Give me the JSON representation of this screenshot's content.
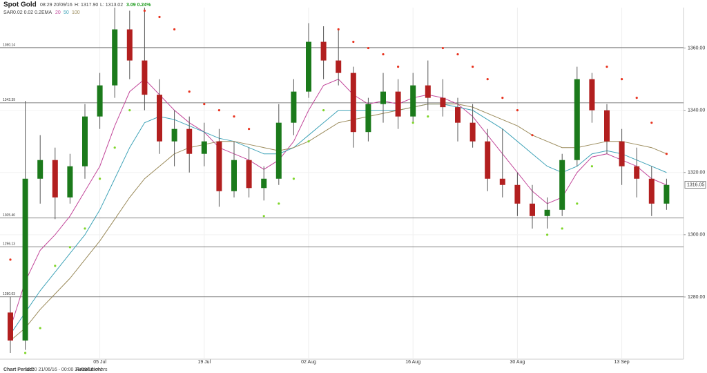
{
  "chart_data": {
    "type": "candlestick",
    "title": "Spot Gold",
    "timestamp": "08:29 20/09/16",
    "high_text": "H: 1317.90",
    "low_text": "L: 1313.02",
    "change_text": "3.09 0.24%",
    "sar_label": "SAR",
    "sar_params": "0.02 0.02 0.2",
    "ema_label": "EMA",
    "period_label": "Chart Period:",
    "period": "12:00 21/06/16 - 00:00 21/09/16",
    "resolution_label": "Resolution:",
    "resolution": "4 hrs",
    "categories": [
      null,
      null,
      null,
      null,
      null,
      null,
      "05 Jul",
      null,
      null,
      null,
      null,
      null,
      null,
      "19 Jul",
      null,
      null,
      null,
      null,
      null,
      null,
      "02 Aug",
      null,
      null,
      null,
      null,
      null,
      null,
      "16 Aug",
      null,
      null,
      null,
      null,
      null,
      null,
      "30 Aug",
      null,
      null,
      null,
      null,
      null,
      null,
      "13 Sep",
      null,
      null,
      null
    ],
    "open": [
      1275,
      1266,
      1318,
      1324,
      1312,
      1322,
      1338,
      1348,
      1366,
      1356,
      1345,
      1330,
      1334,
      1326,
      1330,
      1314,
      1324,
      1315,
      1318,
      1336,
      1346,
      1362,
      1356,
      1352,
      1333,
      1342,
      1346,
      1338,
      1348,
      1344,
      1341,
      1336,
      1330,
      1318,
      1316,
      1310,
      1306,
      1308,
      1324,
      1350,
      1340,
      1330,
      1322,
      1318,
      1310
    ],
    "high": [
      1280,
      1343,
      1332,
      1328,
      1326,
      1342,
      1352,
      1373,
      1372,
      1373,
      1350,
      1340,
      1338,
      1336,
      1334,
      1330,
      1328,
      1322,
      1342,
      1350,
      1368,
      1367,
      1366,
      1354,
      1344,
      1352,
      1350,
      1352,
      1356,
      1350,
      1344,
      1342,
      1334,
      1334,
      1320,
      1316,
      1312,
      1326,
      1354,
      1352,
      1342,
      1334,
      1328,
      1322,
      1318
    ],
    "low": [
      1262,
      1263,
      1310,
      1305,
      1310,
      1318,
      1334,
      1344,
      1350,
      1340,
      1326,
      1322,
      1320,
      1322,
      1309,
      1312,
      1312,
      1311,
      1316,
      1332,
      1344,
      1350,
      1348,
      1328,
      1330,
      1336,
      1334,
      1336,
      1340,
      1338,
      1330,
      1328,
      1314,
      1312,
      1306,
      1302,
      1302,
      1306,
      1322,
      1336,
      1326,
      1316,
      1312,
      1306,
      1308
    ],
    "close": [
      1266,
      1318,
      1324,
      1312,
      1322,
      1338,
      1348,
      1366,
      1356,
      1345,
      1330,
      1334,
      1326,
      1330,
      1314,
      1324,
      1315,
      1318,
      1336,
      1346,
      1362,
      1356,
      1352,
      1333,
      1342,
      1346,
      1338,
      1348,
      1344,
      1341,
      1336,
      1330,
      1318,
      1316,
      1310,
      1306,
      1308,
      1324,
      1350,
      1340,
      1330,
      1322,
      1318,
      1310,
      1316
    ],
    "up_color": "#1b7a1b",
    "down_color": "#b21f1f",
    "series": [
      {
        "name": "20",
        "color": "#c2479a",
        "values": [
          1270,
          1285,
          1295,
          1300,
          1306,
          1314,
          1322,
          1335,
          1346,
          1350,
          1345,
          1340,
          1336,
          1333,
          1328,
          1326,
          1324,
          1321,
          1324,
          1330,
          1340,
          1348,
          1350,
          1345,
          1342,
          1343,
          1342,
          1344,
          1345,
          1344,
          1342,
          1338,
          1332,
          1326,
          1320,
          1314,
          1310,
          1312,
          1320,
          1325,
          1326,
          1324,
          1322,
          1318,
          1316
        ]
      },
      {
        "name": "50",
        "color": "#3fa3b8",
        "values": [
          1268,
          1275,
          1282,
          1288,
          1294,
          1300,
          1308,
          1318,
          1328,
          1336,
          1338,
          1337,
          1335,
          1333,
          1331,
          1330,
          1328,
          1326,
          1326,
          1328,
          1332,
          1336,
          1340,
          1340,
          1340,
          1340,
          1340,
          1341,
          1342,
          1342,
          1341,
          1340,
          1337,
          1334,
          1330,
          1326,
          1322,
          1320,
          1322,
          1326,
          1327,
          1326,
          1324,
          1322,
          1320
        ]
      },
      {
        "name": "100",
        "color": "#9a8a5a",
        "values": [
          1266,
          1270,
          1276,
          1281,
          1286,
          1292,
          1298,
          1305,
          1312,
          1318,
          1322,
          1326,
          1328,
          1329,
          1330,
          1330,
          1329,
          1328,
          1327,
          1328,
          1330,
          1333,
          1336,
          1337,
          1338,
          1339,
          1340,
          1341,
          1342,
          1342,
          1342,
          1341,
          1339,
          1337,
          1335,
          1332,
          1330,
          1328,
          1328,
          1329,
          1330,
          1330,
          1329,
          1328,
          1326
        ]
      }
    ],
    "sar": [
      1292,
      1262,
      1270,
      1290,
      1296,
      1302,
      1318,
      1328,
      1340,
      1372,
      1370,
      1366,
      1346,
      1342,
      1340,
      1338,
      1334,
      1306,
      1310,
      1318,
      1330,
      1340,
      1366,
      1362,
      1360,
      1358,
      1354,
      1336,
      1338,
      1360,
      1358,
      1354,
      1350,
      1344,
      1340,
      1332,
      1300,
      1302,
      1310,
      1322,
      1354,
      1350,
      1344,
      1336,
      1326
    ],
    "sar_above_color": "#e8321e",
    "sar_below_color": "#7fd62a",
    "levels": [
      1360.14,
      1342.39,
      {
        "value": 1305.4,
        "label": "1305.40"
      },
      1296.13,
      1280.03
    ],
    "last_price": 1316.05,
    "ylim": [
      1260,
      1373
    ],
    "yticks": [
      {
        "value": 1280,
        "label": "1280.00"
      },
      {
        "value": 1300,
        "label": "1300.00"
      },
      {
        "value": 1320,
        "label": "1320.00"
      },
      {
        "value": 1340,
        "label": "1340.00"
      },
      {
        "value": 1360,
        "label": "1360.00"
      }
    ],
    "grid": true
  }
}
